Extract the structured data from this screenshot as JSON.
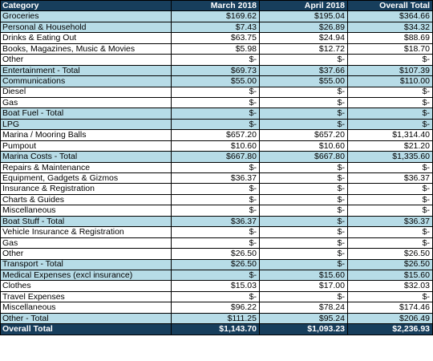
{
  "colors": {
    "header_bg": "#173e5c",
    "header_text": "#ffffff",
    "highlight_row_bg": "#b7dce7",
    "plain_row_bg": "#ffffff",
    "border": "#000000"
  },
  "headers": [
    "Category",
    "March 2018",
    "April 2018",
    "Overall Total"
  ],
  "rows": [
    {
      "label": "Groceries",
      "march": "$169.62",
      "april": "$195.04",
      "total": "$364.66",
      "shaded": true
    },
    {
      "label": "Personal & Household",
      "march": "$7.43",
      "april": "$26.89",
      "total": "$34.32",
      "shaded": true
    },
    {
      "label": "Drinks & Eating Out",
      "march": "$63.75",
      "april": "$24.94",
      "total": "$88.69",
      "shaded": false
    },
    {
      "label": "Books, Magazines, Music & Movies",
      "march": "$5.98",
      "april": "$12.72",
      "total": "$18.70",
      "shaded": false
    },
    {
      "label": "Other",
      "march": "$-",
      "april": "$-",
      "total": "$-",
      "shaded": false
    },
    {
      "label": "Entertainment - Total",
      "march": "$69.73",
      "april": "$37.66",
      "total": "$107.39",
      "shaded": true
    },
    {
      "label": "Communications",
      "march": "$55.00",
      "april": "$55.00",
      "total": "$110.00",
      "shaded": true
    },
    {
      "label": "Diesel",
      "march": "$-",
      "april": "$-",
      "total": "$-",
      "shaded": false
    },
    {
      "label": "Gas",
      "march": "$-",
      "april": "$-",
      "total": "$-",
      "shaded": false
    },
    {
      "label": "Boat Fuel - Total",
      "march": "$-",
      "april": "$-",
      "total": "$-",
      "shaded": true
    },
    {
      "label": "LPG",
      "march": "$-",
      "april": "$-",
      "total": "$-",
      "shaded": true
    },
    {
      "label": "Marina / Mooring Balls",
      "march": "$657.20",
      "april": "$657.20",
      "total": "$1,314.40",
      "shaded": false
    },
    {
      "label": "Pumpout",
      "march": "$10.60",
      "april": "$10.60",
      "total": "$21.20",
      "shaded": false
    },
    {
      "label": "Marina Costs - Total",
      "march": "$667.80",
      "april": "$667.80",
      "total": "$1,335.60",
      "shaded": true
    },
    {
      "label": "Repairs & Maintenance",
      "march": "$-",
      "april": "$-",
      "total": "$-",
      "shaded": false
    },
    {
      "label": "Equipment, Gadgets & Gizmos",
      "march": "$36.37",
      "april": "$-",
      "total": "$36.37",
      "shaded": false
    },
    {
      "label": "Insurance & Registration",
      "march": "$-",
      "april": "$-",
      "total": "$-",
      "shaded": false
    },
    {
      "label": "Charts & Guides",
      "march": "$-",
      "april": "$-",
      "total": "$-",
      "shaded": false
    },
    {
      "label": "Miscellaneous",
      "march": "$-",
      "april": "$-",
      "total": "$-",
      "shaded": false
    },
    {
      "label": "Boat Stuff - Total",
      "march": "$36.37",
      "april": "$-",
      "total": "$36.37",
      "shaded": true
    },
    {
      "label": "Vehicle Insurance & Registration",
      "march": "$-",
      "april": "$-",
      "total": "$-",
      "shaded": false
    },
    {
      "label": "Gas",
      "march": "$-",
      "april": "$-",
      "total": "$-",
      "shaded": false
    },
    {
      "label": "Other",
      "march": "$26.50",
      "april": "$-",
      "total": "$26.50",
      "shaded": false
    },
    {
      "label": "Transport - Total",
      "march": "$26.50",
      "april": "$-",
      "total": "$26.50",
      "shaded": true
    },
    {
      "label": "Medical Expenses (excl insurance)",
      "march": "$-",
      "april": "$15.60",
      "total": "$15.60",
      "shaded": true
    },
    {
      "label": "Clothes",
      "march": "$15.03",
      "april": "$17.00",
      "total": "$32.03",
      "shaded": false
    },
    {
      "label": "Travel Expenses",
      "march": "$-",
      "april": "$-",
      "total": "$-",
      "shaded": false
    },
    {
      "label": "Miscellaneous",
      "march": "$96.22",
      "april": "$78.24",
      "total": "$174.46",
      "shaded": false
    },
    {
      "label": "Other - Total",
      "march": "$111.25",
      "april": "$95.24",
      "total": "$206.49",
      "shaded": true
    }
  ],
  "footer": {
    "label": "Overall Total",
    "march": "$1,143.70",
    "april": "$1,093.23",
    "total": "$2,236.93"
  }
}
